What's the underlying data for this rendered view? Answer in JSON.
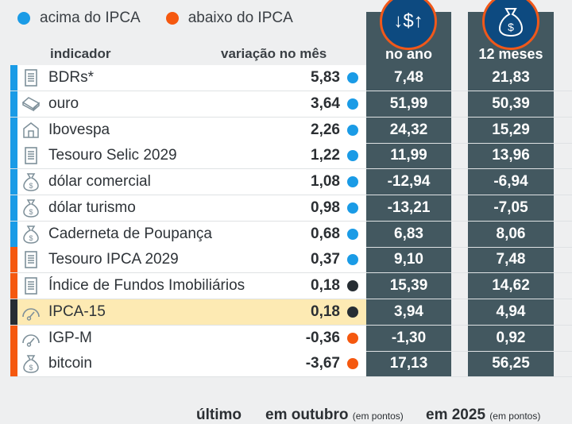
{
  "legend": [
    {
      "label": "acima do IPCA",
      "color": "#1a9be6"
    },
    {
      "label": "abaixo do IPCA",
      "color": "#f5580f"
    }
  ],
  "headers": {
    "indicador": "indicador",
    "mes": "variação no mês",
    "ano": "no ano",
    "doze": "12 meses"
  },
  "colors": {
    "blue": "#1a9be6",
    "orange": "#f5580f",
    "dark": "#262d33"
  },
  "rows": [
    {
      "name": "BDRs*",
      "mes": "5,83",
      "ano": "7,48",
      "doze": "21,83",
      "bar": "blue",
      "dot": "blue",
      "icon": "document"
    },
    {
      "name": "ouro",
      "mes": "3,64",
      "ano": "51,99",
      "doze": "50,39",
      "bar": "blue",
      "dot": "blue",
      "icon": "gold-bar"
    },
    {
      "name": "Ibovespa",
      "mes": "2,26",
      "ano": "24,32",
      "doze": "15,29",
      "bar": "blue",
      "dot": "blue",
      "icon": "bank"
    },
    {
      "name": "Tesouro Selic 2029",
      "mes": "1,22",
      "ano": "11,99",
      "doze": "13,96",
      "bar": "blue",
      "dot": "blue",
      "icon": "document"
    },
    {
      "name": "dólar comercial",
      "mes": "1,08",
      "ano": "-12,94",
      "doze": "-6,94",
      "bar": "blue",
      "dot": "blue",
      "icon": "money-bag"
    },
    {
      "name": "dólar turismo",
      "mes": "0,98",
      "ano": "-13,21",
      "doze": "-7,05",
      "bar": "blue",
      "dot": "blue",
      "icon": "money-bag"
    },
    {
      "name": "Caderneta de Poupança",
      "mes": "0,68",
      "ano": "6,83",
      "doze": "8,06",
      "bar": "blue",
      "dot": "blue",
      "icon": "money-bag"
    },
    {
      "name": "Tesouro IPCA 2029",
      "mes": "0,37",
      "ano": "9,10",
      "doze": "7,48",
      "bar": "orange",
      "dot": "blue",
      "icon": "document"
    },
    {
      "name": "Índice de Fundos Imobiliários",
      "mes": "0,18",
      "ano": "15,39",
      "doze": "14,62",
      "bar": "orange",
      "dot": "dark",
      "icon": "document"
    },
    {
      "name": "IPCA-15",
      "mes": "0,18",
      "ano": "3,94",
      "doze": "4,94",
      "bar": "dark",
      "dot": "dark",
      "icon": "gauge",
      "highlight": true
    },
    {
      "name": "IGP-M",
      "mes": "-0,36",
      "ano": "-1,30",
      "doze": "0,92",
      "bar": "orange",
      "dot": "orange",
      "icon": "gauge"
    },
    {
      "name": "bitcoin",
      "mes": "-3,67",
      "ano": "17,13",
      "doze": "56,25",
      "bar": "orange",
      "dot": "orange",
      "icon": "money-bag"
    }
  ],
  "footer": {
    "ultimo": "último",
    "outubro": "em outubro",
    "outubro_note": "(em pontos)",
    "ano": "em 2025",
    "ano_note": "(em pontos)"
  }
}
